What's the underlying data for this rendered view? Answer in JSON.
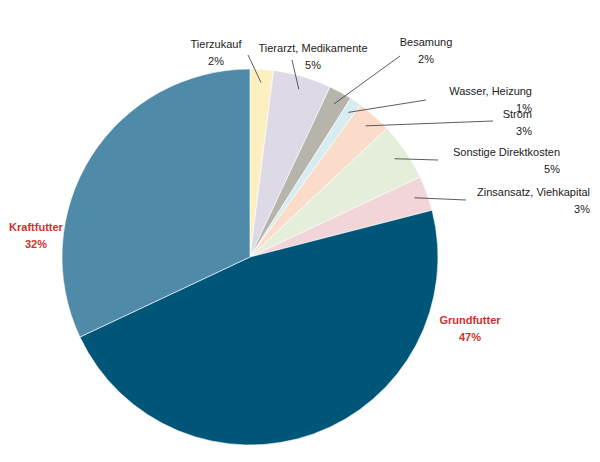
{
  "chart_data": {
    "type": "pie",
    "categories": [
      "Tierzukauf",
      "Tierarzt, Medikamente",
      "Besamung",
      "Wasser, Heizung",
      "Strom",
      "Sonstige Direktkosten",
      "Zinsansatz, Viehkapital",
      "Grundfutter",
      "Kraftfutter"
    ],
    "values": [
      2,
      5,
      2,
      1,
      3,
      5,
      3,
      47,
      32
    ],
    "value_labels": [
      "2%",
      "5%",
      "2%",
      "1%",
      "3%",
      "5%",
      "3%",
      "47%",
      "32%"
    ],
    "colors": [
      "#fdf0c0",
      "#ddd9e7",
      "#b7b4ab",
      "#d6ecf1",
      "#fbdccb",
      "#e5eedb",
      "#f1d5d8",
      "#005678",
      "#4f8aa8"
    ],
    "data_labels": true
  }
}
